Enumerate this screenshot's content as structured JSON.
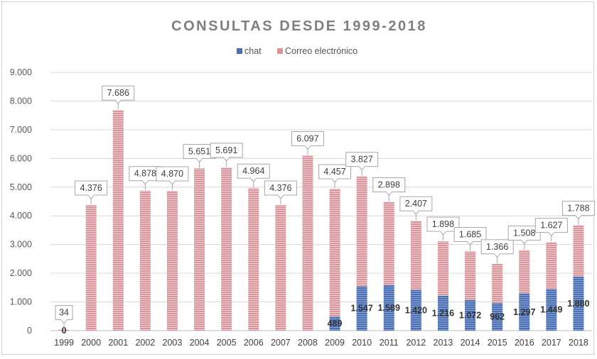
{
  "chart_data": {
    "type": "bar",
    "stacked": true,
    "title": "CONSULTAS DESDE 1999-2018",
    "categories": [
      "1999",
      "2000",
      "2001",
      "2002",
      "2003",
      "2004",
      "2005",
      "2006",
      "2007",
      "2008",
      "2009",
      "2010",
      "2011",
      "2012",
      "2013",
      "2014",
      "2015",
      "2016",
      "2017",
      "2018"
    ],
    "series": [
      {
        "name": "chat",
        "color": "#4a6fb3",
        "values": [
          0,
          0,
          0,
          0,
          0,
          0,
          0,
          0,
          0,
          0,
          489,
          1547,
          1589,
          1420,
          1216,
          1072,
          962,
          1297,
          1449,
          1880
        ],
        "labels": [
          "0",
          "",
          "",
          "",
          "",
          "",
          "",
          "",
          "",
          "",
          "489",
          "1.547",
          "1.589",
          "1.420",
          "1.216",
          "1.072",
          "962",
          "1.297",
          "1.449",
          "1.880"
        ]
      },
      {
        "name": "Correo electrónico",
        "color": "#d9959a",
        "values": [
          34,
          4376,
          7686,
          4878,
          4870,
          5651,
          5691,
          4964,
          4376,
          6097,
          4457,
          3827,
          2898,
          2407,
          1898,
          1685,
          1366,
          1508,
          1627,
          1788
        ],
        "labels": [
          "34",
          "4.376",
          "7.686",
          "4.878",
          "4.870",
          "5.651",
          "5.691",
          "4.964",
          "4.376",
          "6.097",
          "4.457",
          "3.827",
          "2.898",
          "2.407",
          "1.898",
          "1.685",
          "1.366",
          "1.508",
          "1.627",
          "1.788"
        ]
      }
    ],
    "ylim": [
      0,
      9000
    ],
    "yticks": [
      "0",
      "1.000",
      "2.000",
      "3.000",
      "4.000",
      "5.000",
      "6.000",
      "7.000",
      "8.000",
      "9.000"
    ],
    "grid": true,
    "legend_position": "top-center"
  }
}
